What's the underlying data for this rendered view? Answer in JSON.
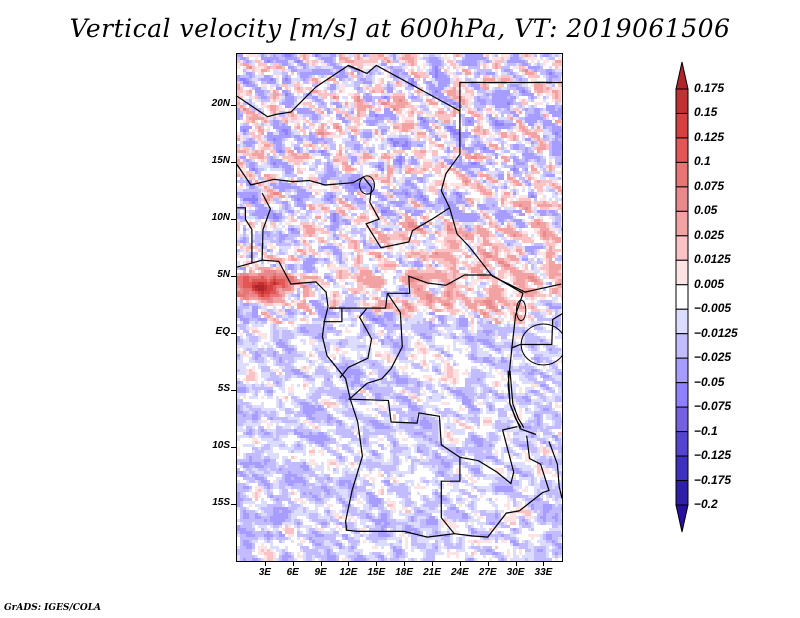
{
  "chart_data": {
    "type": "heatmap",
    "title": "Vertical velocity [m/s] at 600hPa, VT: 2019061506",
    "variable": "Vertical velocity",
    "units": "m/s",
    "level": "600hPa",
    "valid_time": "2019061506",
    "xlabel": "",
    "ylabel": "",
    "x_range_deg": [
      0,
      35
    ],
    "y_range_deg": [
      -20,
      24.5
    ],
    "x_ticks": [
      {
        "value": 3,
        "label": "3E"
      },
      {
        "value": 6,
        "label": "6E"
      },
      {
        "value": 9,
        "label": "9E"
      },
      {
        "value": 12,
        "label": "12E"
      },
      {
        "value": 15,
        "label": "15E"
      },
      {
        "value": 18,
        "label": "18E"
      },
      {
        "value": 21,
        "label": "21E"
      },
      {
        "value": 24,
        "label": "24E"
      },
      {
        "value": 27,
        "label": "27E"
      },
      {
        "value": 30,
        "label": "30E"
      },
      {
        "value": 33,
        "label": "33E"
      }
    ],
    "y_ticks": [
      {
        "value": 20,
        "label": "20N"
      },
      {
        "value": 15,
        "label": "15N"
      },
      {
        "value": 10,
        "label": "10N"
      },
      {
        "value": 5,
        "label": "5N"
      },
      {
        "value": 0,
        "label": "EQ"
      },
      {
        "value": -5,
        "label": "5S"
      },
      {
        "value": -10,
        "label": "10S"
      },
      {
        "value": -15,
        "label": "15S"
      }
    ],
    "colorbar": {
      "orientation": "vertical",
      "placement": "right",
      "extend": "both",
      "levels": [
        0.175,
        0.15,
        0.125,
        0.1,
        0.075,
        0.05,
        0.025,
        0.0125,
        0.005,
        -0.005,
        -0.0125,
        -0.025,
        -0.05,
        -0.075,
        -0.1,
        -0.125,
        -0.175,
        -0.2
      ],
      "labels": [
        "0.175",
        "0.15",
        "0.125",
        "0.1",
        "0.075",
        "0.05",
        "0.025",
        "0.0125",
        "0.005",
        "−0.005",
        "−0.0125",
        "−0.025",
        "−0.05",
        "−0.075",
        "−0.1",
        "−0.125",
        "−0.175",
        "−0.2"
      ],
      "colors": [
        "#b0252a",
        "#c13032",
        "#d64040",
        "#e35656",
        "#e87474",
        "#e8898d",
        "#f2a2a2",
        "#fac2c4",
        "#fde3e4",
        "#ffffff",
        "#dcdcff",
        "#c2bcff",
        "#a79cff",
        "#8e80ff",
        "#7460e0",
        "#5444cf",
        "#4030bf",
        "#3020a8",
        "#2a0ea0"
      ],
      "over_color": "#b0252a",
      "under_color": "#2a0ea0"
    },
    "notable_features": [
      {
        "description": "Strong ascent (red) along Gulf of Guinea coast near 5N, 0-6E",
        "approx_value": 0.175
      },
      {
        "description": "Mixed ascent/descent streaks over Sahel and Sahara (10N-24N)"
      },
      {
        "description": "Weak descent (light blue) dominating south of equator"
      }
    ]
  },
  "footer": {
    "credit": "GrADS: IGES/COLA"
  }
}
